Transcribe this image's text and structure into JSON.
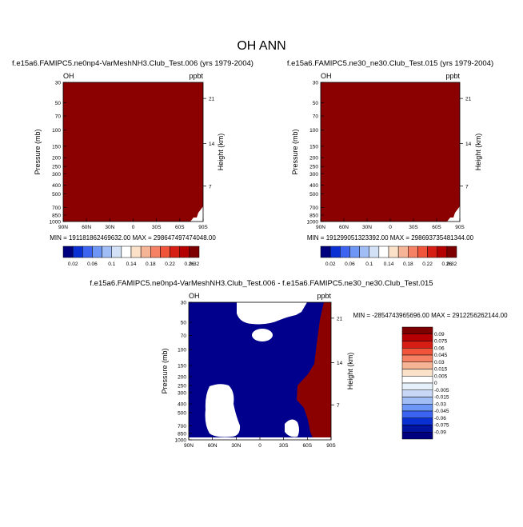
{
  "page": {
    "title": "OH ANN"
  },
  "chart_data": [
    {
      "type": "heatmap",
      "title": "f.e15a6.FAMIPC5.ne0np4-VarMeshNH3.Club_Test.006 (yrs 1979-2004)",
      "left_label": "OH",
      "units": "ppbt",
      "xlabel": "",
      "ylabel": "Pressure (mb)",
      "ylabel_right": "Height (km)",
      "x_ticks": [
        "90N",
        "60N",
        "30N",
        "0",
        "30S",
        "60S",
        "90S"
      ],
      "y_ticks": [
        "30",
        "50",
        "70",
        "100",
        "150",
        "200",
        "250",
        "300",
        "400",
        "500",
        "700",
        "850",
        "1000"
      ],
      "y_right_ticks": [
        "21",
        "14",
        "7"
      ],
      "min_max_text": "MIN = 191181862469632.00   MAX = 298647497474048.00",
      "field_level_note": "entire field above top contour level (> 0.32)",
      "colorbar_labels": [
        "0.02",
        "0.06",
        "0.1",
        "0.14",
        "0.18",
        "0.22",
        "0.26",
        "0.32"
      ],
      "colorbar_colors": [
        "#00007f",
        "#0a2fd2",
        "#3c64f0",
        "#6e96f5",
        "#a0bef5",
        "#d2e1f5",
        "#ffffff",
        "#fae1c8",
        "#f5b496",
        "#f58264",
        "#f0553c",
        "#d71e14",
        "#b40000",
        "#7d0000"
      ]
    },
    {
      "type": "heatmap",
      "title": "f.e15a6.FAMIPC5.ne30_ne30.Club_Test.015 (yrs 1979-2004)",
      "left_label": "OH",
      "units": "ppbt",
      "xlabel": "",
      "ylabel": "Pressure (mb)",
      "ylabel_right": "Height (km)",
      "x_ticks": [
        "90N",
        "60N",
        "30N",
        "0",
        "30S",
        "60S",
        "90S"
      ],
      "y_ticks": [
        "30",
        "50",
        "70",
        "100",
        "150",
        "200",
        "250",
        "300",
        "400",
        "500",
        "700",
        "850",
        "1000"
      ],
      "y_right_ticks": [
        "21",
        "14",
        "7"
      ],
      "min_max_text": "MIN = 191299051323392.00   MAX = 298693735481344.00",
      "field_level_note": "entire field above top contour level (> 0.32)",
      "colorbar_labels": [
        "0.02",
        "0.06",
        "0.1",
        "0.14",
        "0.18",
        "0.22",
        "0.26",
        "0.32"
      ],
      "colorbar_colors": [
        "#00007f",
        "#0a2fd2",
        "#3c64f0",
        "#6e96f5",
        "#a0bef5",
        "#d2e1f5",
        "#ffffff",
        "#fae1c8",
        "#f5b496",
        "#f58264",
        "#f0553c",
        "#d71e14",
        "#b40000",
        "#7d0000"
      ]
    },
    {
      "type": "heatmap",
      "title": "f.e15a6.FAMIPC5.ne0np4-VarMeshNH3.Club_Test.006 - f.e15a6.FAMIPC5.ne30_ne30.Club_Test.015",
      "left_label": "OH",
      "units": "ppbt",
      "xlabel": "",
      "ylabel": "Pressure (mb)",
      "ylabel_right": "Height (km)",
      "x_ticks": [
        "90N",
        "60N",
        "30N",
        "0",
        "30S",
        "60S",
        "90S"
      ],
      "y_ticks": [
        "30",
        "50",
        "70",
        "100",
        "150",
        "200",
        "250",
        "300",
        "400",
        "500",
        "700",
        "850",
        "1000"
      ],
      "y_right_ticks": [
        "21",
        "14",
        "7"
      ],
      "min_max_text": "MIN = -2854743965696.00   MAX = 2912256262144.00",
      "field_note": "mostly below -0.09 (dark blue); above 0.09 (dark red) near 60S-90S below ~150 mb; white (near zero) patches near 30N-0 at top, ~0 at 70-100 mb, ~60N at 250-600 mb",
      "colorbar_labels": [
        "0.09",
        "0.075",
        "0.06",
        "0.045",
        "0.03",
        "0.015",
        "0.005",
        "0",
        "-0.005",
        "-0.015",
        "-0.03",
        "-0.045",
        "-0.06",
        "-0.075",
        "-0.09"
      ],
      "colorbar_colors": [
        "#7d0000",
        "#b40000",
        "#d71e14",
        "#f0553c",
        "#f58264",
        "#f5b496",
        "#fae1c8",
        "#ffffff",
        "#e6f0fa",
        "#c8d7f5",
        "#a0bef5",
        "#6e96f5",
        "#3c64f0",
        "#0a2fd2",
        "#0014a0",
        "#00007f"
      ]
    }
  ]
}
